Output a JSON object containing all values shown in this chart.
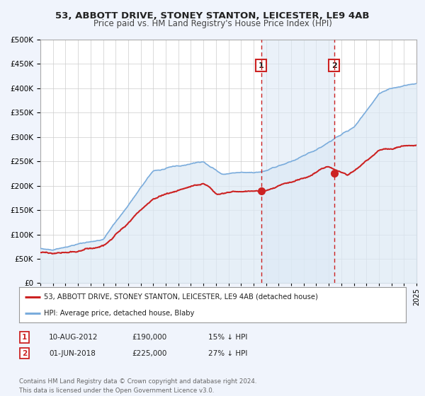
{
  "title": "53, ABBOTT DRIVE, STONEY STANTON, LEICESTER, LE9 4AB",
  "subtitle": "Price paid vs. HM Land Registry's House Price Index (HPI)",
  "legend_entry1": "53, ABBOTT DRIVE, STONEY STANTON, LEICESTER, LE9 4AB (detached house)",
  "legend_entry2": "HPI: Average price, detached house, Blaby",
  "annotation1_date": "10-AUG-2012",
  "annotation1_price": "£190,000",
  "annotation1_hpi": "15% ↓ HPI",
  "annotation1_year": 2012.6,
  "annotation1_value": 190000,
  "annotation2_date": "01-JUN-2018",
  "annotation2_price": "£225,000",
  "annotation2_hpi": "27% ↓ HPI",
  "annotation2_year": 2018.42,
  "annotation2_value": 225000,
  "footnote": "Contains HM Land Registry data © Crown copyright and database right 2024.\nThis data is licensed under the Open Government Licence v3.0.",
  "hpi_color": "#7aacdc",
  "hpi_fill_color": "#dce9f5",
  "sale_color": "#cc2222",
  "background_color": "#f0f4fc",
  "plot_bg_color": "#ffffff",
  "shaded_region_color": "#dce9f5",
  "ylim": [
    0,
    500000
  ],
  "xlim_start": 1995,
  "xlim_end": 2025,
  "yticks": [
    0,
    50000,
    100000,
    150000,
    200000,
    250000,
    300000,
    350000,
    400000,
    450000,
    500000
  ]
}
